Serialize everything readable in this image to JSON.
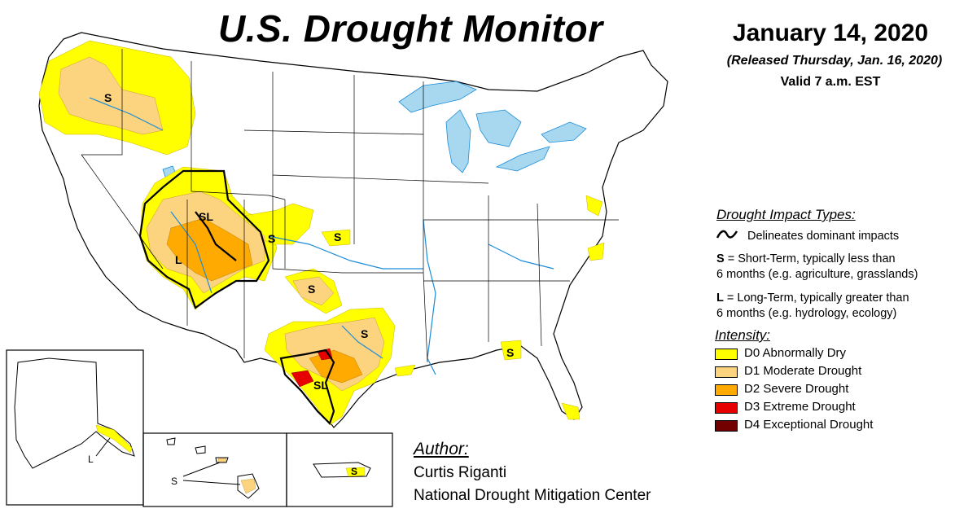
{
  "title": "U.S. Drought Monitor",
  "date": "January 14, 2020",
  "released": "(Released Thursday, Jan. 16, 2020)",
  "valid": "Valid 7 a.m. EST",
  "impact": {
    "heading": "Drought Impact Types:",
    "line_desc": "Delineates dominant impacts",
    "short_key": "S",
    "short_text_1": " = Short-Term, typically less than",
    "short_text_2": "6 months (e.g. agriculture, grasslands)",
    "long_key": "L",
    "long_text_1": " = Long-Term, typically greater than",
    "long_text_2": "6 months (e.g. hydrology, ecology)"
  },
  "intensity": {
    "heading": "Intensity:",
    "levels": [
      {
        "label": "D0 Abnormally Dry",
        "color": "#ffff00"
      },
      {
        "label": "D1 Moderate Drought",
        "color": "#fcd37f"
      },
      {
        "label": "D2 Severe Drought",
        "color": "#ffaa00"
      },
      {
        "label": "D3 Extreme Drought",
        "color": "#e60000"
      },
      {
        "label": "D4 Exceptional Drought",
        "color": "#730000"
      }
    ]
  },
  "author": {
    "heading": "Author:",
    "name": "Curtis Riganti",
    "org": "National Drought Mitigation Center"
  },
  "map_labels": {
    "northwest": "S",
    "four_corners_north": "SL",
    "four_corners_south": "L",
    "colorado": "S",
    "kansas": "S",
    "oklahoma": "S",
    "east_texas": "S",
    "south_texas": "SL",
    "florida": "S",
    "alaska": "L",
    "hawaii": "S",
    "puerto_rico": "S"
  },
  "colors": {
    "water": "#a7d8f0",
    "river": "#1c8cd8",
    "border": "#000000"
  }
}
